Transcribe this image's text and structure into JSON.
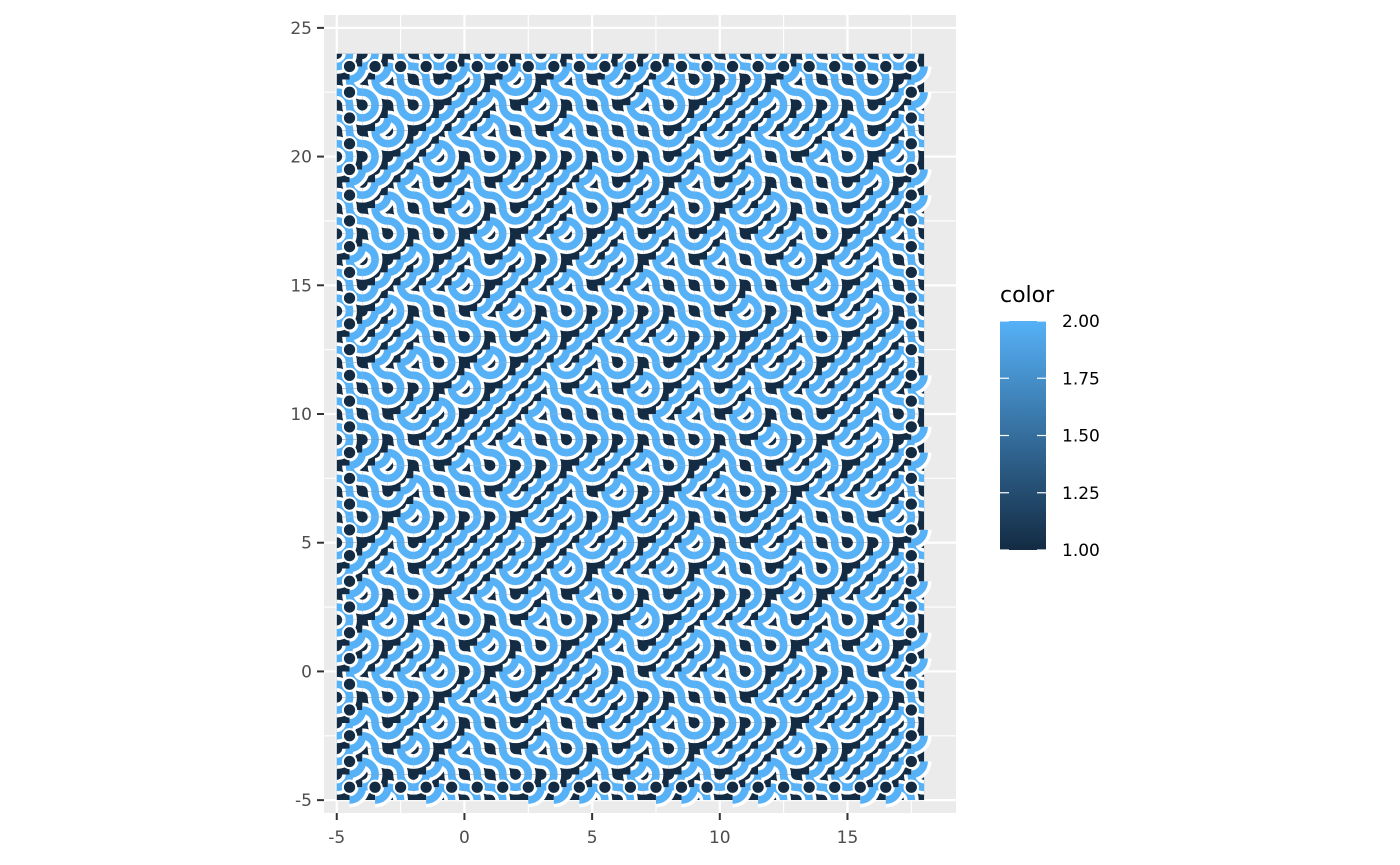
{
  "chart_data": {
    "type": "scatter",
    "title": "",
    "xlabel": "",
    "ylabel": "",
    "description_pattern": "truchet",
    "xlim": [
      -5.5,
      19.25
    ],
    "ylim": [
      -5.5,
      25.5
    ],
    "x_ticks": [
      -5,
      0,
      5,
      10,
      15
    ],
    "y_ticks": [
      -5,
      0,
      5,
      10,
      15,
      20,
      25
    ],
    "x_tick_labels": [
      "-5",
      "0",
      "5",
      "10",
      "15"
    ],
    "y_tick_labels": [
      "-5",
      "0",
      "5",
      "10",
      "15",
      "20",
      "25"
    ],
    "grid": true,
    "tile_grid": {
      "x_min": -4.5,
      "x_max": 17.5,
      "y_min": -4.5,
      "y_max": 23.5
    },
    "legend": {
      "title": "color",
      "position": "right",
      "type": "colorbar",
      "range": [
        1.0,
        2.0
      ],
      "breaks": [
        1.0,
        1.25,
        1.5,
        1.75,
        2.0
      ],
      "labels": [
        "1.00",
        "1.25",
        "1.50",
        "1.75",
        "2.00"
      ],
      "low_color": "#132B43",
      "high_color": "#56B1F7"
    },
    "colors": {
      "panel_background": "#EBEBEB",
      "grid_line": "#FFFFFF",
      "color_1": "#132B43",
      "color_2": "#56B1F7",
      "outline": "#FFFFFF"
    }
  }
}
